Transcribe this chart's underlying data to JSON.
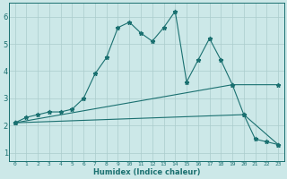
{
  "xlabel": "Humidex (Indice chaleur)",
  "ylabel": "",
  "background_color": "#cce8e8",
  "grid_color": "#aacccc",
  "line_color": "#1a7070",
  "xlim": [
    -0.5,
    23.5
  ],
  "ylim": [
    0.7,
    6.5
  ],
  "yticks": [
    1,
    2,
    3,
    4,
    5,
    6
  ],
  "xticks": [
    0,
    1,
    2,
    3,
    4,
    5,
    6,
    7,
    8,
    9,
    10,
    11,
    12,
    13,
    14,
    15,
    16,
    17,
    18,
    19,
    20,
    21,
    22,
    23
  ],
  "line1_x": [
    0,
    1,
    2,
    3,
    4,
    5,
    6,
    7,
    8,
    9,
    10,
    11,
    12,
    13,
    14,
    15,
    16,
    17,
    18,
    19,
    20,
    21,
    22,
    23
  ],
  "line1_y": [
    2.1,
    2.3,
    2.4,
    2.5,
    2.5,
    2.6,
    3.0,
    3.9,
    4.5,
    5.6,
    5.8,
    5.4,
    5.1,
    5.6,
    6.2,
    3.6,
    4.4,
    5.2,
    4.4,
    3.5,
    2.4,
    1.5,
    1.4,
    1.3
  ],
  "line2_x": [
    0,
    20,
    23
  ],
  "line2_y": [
    2.1,
    2.4,
    1.3
  ],
  "line3_x": [
    0,
    19,
    23
  ],
  "line3_y": [
    2.1,
    3.5,
    3.5
  ]
}
